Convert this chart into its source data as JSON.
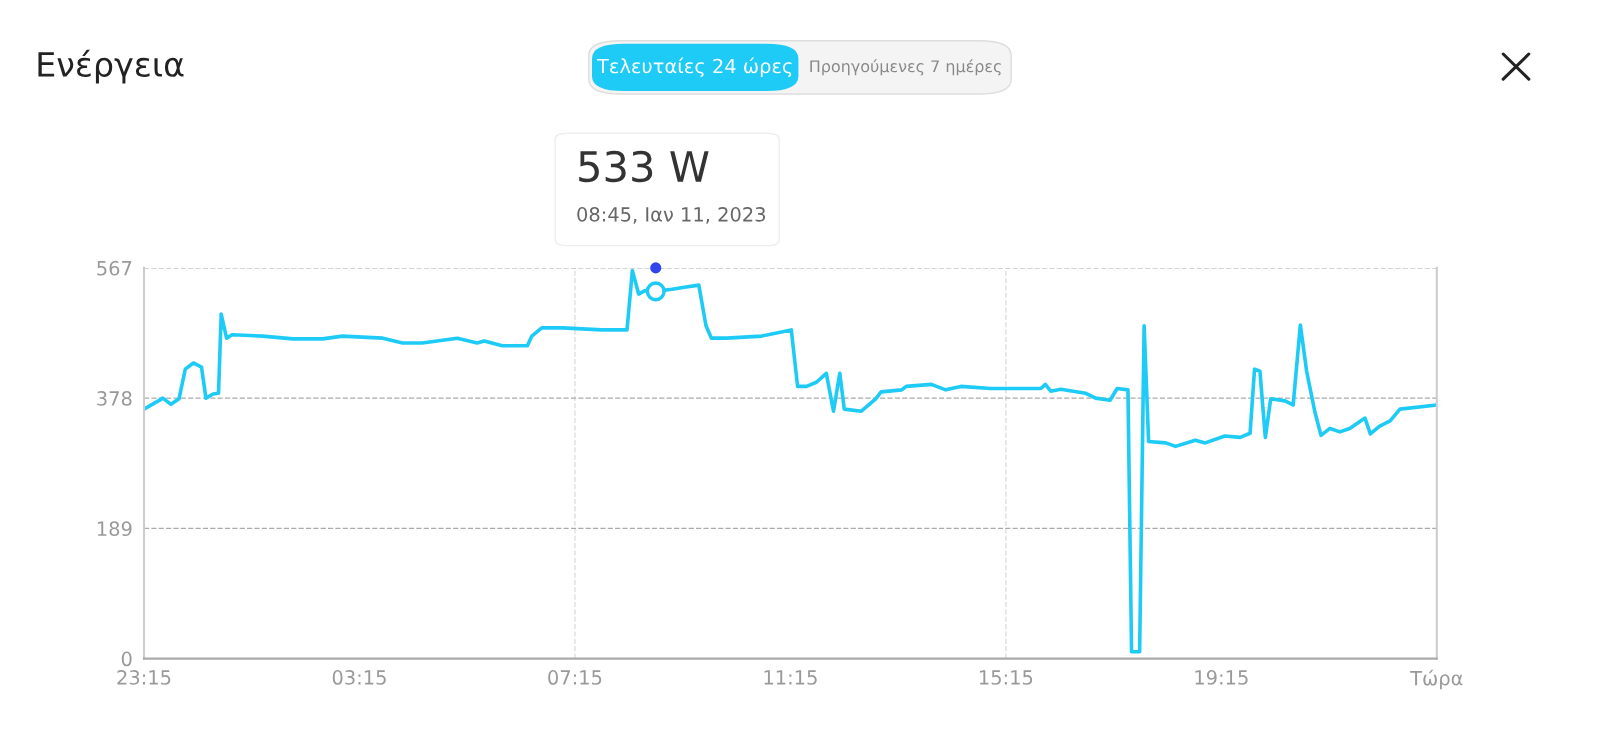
{
  "chart_data": {
    "type": "line",
    "title": "Ενέργεια",
    "x": [
      "2023-01-10T23:15",
      "2023-01-10T23:31",
      "2023-01-10T23:36",
      "2023-01-10T23:45",
      "2023-01-10T23:54",
      "2023-01-11T00:01",
      "2023-01-11T00:10",
      "2023-01-11T00:19",
      "2023-01-11T00:24",
      "2023-01-11T00:32",
      "2023-01-11T00:38",
      "2023-01-11T00:41",
      "2023-01-11T00:47",
      "2023-01-11T00:53",
      "2023-01-11T01:27",
      "2023-01-11T02:01",
      "2023-01-11T02:34",
      "2023-01-11T02:56",
      "2023-01-11T03:41",
      "2023-01-11T04:03",
      "2023-01-11T04:25",
      "2023-01-11T05:04",
      "2023-01-11T05:26",
      "2023-01-11T05:34",
      "2023-01-11T05:54",
      "2023-01-11T06:22",
      "2023-01-11T06:27",
      "2023-01-11T06:38",
      "2023-01-11T07:01",
      "2023-01-11T07:45",
      "2023-01-11T08:13",
      "2023-01-11T08:19",
      "2023-01-11T08:26",
      "2023-01-11T08:33",
      "2023-01-11T08:45",
      "2023-01-11T09:03",
      "2023-01-11T09:17",
      "2023-01-11T09:33",
      "2023-01-11T09:41",
      "2023-01-11T09:47",
      "2023-01-11T10:04",
      "2023-01-11T10:43",
      "2023-01-11T11:16",
      "2023-01-11T11:23",
      "2023-01-11T11:33",
      "2023-01-11T11:44",
      "2023-01-11T11:55",
      "2023-01-11T12:03",
      "2023-01-11T12:10",
      "2023-01-11T12:15",
      "2023-01-11T12:34",
      "2023-01-11T12:50",
      "2023-01-11T12:56",
      "2023-01-11T13:19",
      "2023-01-11T13:24",
      "2023-01-11T13:52",
      "2023-01-11T14:08",
      "2023-01-11T14:25",
      "2023-01-11T14:58",
      "2023-01-11T15:54",
      "2023-01-11T15:59",
      "2023-01-11T16:05",
      "2023-01-11T16:16",
      "2023-01-11T16:44",
      "2023-01-11T16:55",
      "2023-01-11T17:11",
      "2023-01-11T17:19",
      "2023-01-11T17:31",
      "2023-01-11T17:35",
      "2023-01-11T17:44",
      "2023-01-11T17:49",
      "2023-01-11T17:54",
      "2023-01-11T18:13",
      "2023-01-11T18:24",
      "2023-01-11T18:46",
      "2023-01-11T18:57",
      "2023-01-11T19:19",
      "2023-01-11T19:36",
      "2023-01-11T19:47",
      "2023-01-11T19:52",
      "2023-01-11T19:58",
      "2023-01-11T20:04",
      "2023-01-11T20:10",
      "2023-01-11T20:26",
      "2023-01-11T20:35",
      "2023-01-11T20:43",
      "2023-01-11T20:50",
      "2023-01-11T20:59",
      "2023-01-11T21:06",
      "2023-01-11T21:16",
      "2023-01-11T21:27",
      "2023-01-11T21:38",
      "2023-01-11T21:55",
      "2023-01-11T22:01",
      "2023-01-11T22:11",
      "2023-01-11T22:23",
      "2023-01-11T22:34",
      "2023-01-11T23:15"
    ],
    "series": [
      {
        "color": "#1ecbf7",
        "values": [
          362,
          374,
          378,
          369,
          377,
          420,
          429,
          423,
          378,
          384,
          385,
          500,
          465,
          470,
          468,
          464,
          464,
          468,
          465,
          458,
          458,
          465,
          458,
          461,
          454,
          454,
          468,
          480,
          480,
          477,
          477,
          563,
          529,
          534,
          533,
          536,
          539,
          542,
          483,
          465,
          465,
          468,
          477,
          395,
          395,
          401,
          414,
          359,
          414,
          362,
          359,
          377,
          387,
          390,
          395,
          398,
          390,
          395,
          392,
          392,
          398,
          388,
          391,
          385,
          378,
          375,
          392,
          390,
          10,
          10,
          483,
          315,
          313,
          308,
          317,
          313,
          323,
          321,
          327,
          420,
          417,
          321,
          377,
          374,
          368,
          484,
          417,
          359,
          324,
          334,
          329,
          334,
          349,
          326,
          337,
          345,
          362,
          368
        ]
      }
    ],
    "xlim": [
      "2023-01-10T23:15",
      "2023-01-11T23:15"
    ],
    "ylim": [
      0,
      567
    ],
    "xticks": [
      {
        "value": "2023-01-10T23:15",
        "label": "23:15"
      },
      {
        "value": "2023-01-11T03:15",
        "label": "03:15"
      },
      {
        "value": "2023-01-11T07:15",
        "label": "07:15"
      },
      {
        "value": "2023-01-11T11:15",
        "label": "11:15"
      },
      {
        "value": "2023-01-11T15:15",
        "label": "15:15"
      },
      {
        "value": "2023-01-11T19:15",
        "label": "19:15"
      },
      {
        "value": "2023-01-11T23:15",
        "label": "Τώρα"
      }
    ],
    "yticks": [
      0,
      189,
      378,
      567
    ],
    "grid": "y",
    "ref_lines": [
      {
        "axis": "x",
        "value": "2023-01-11T07:15",
        "color": "#dddddd",
        "line_style": "dashed"
      },
      {
        "axis": "x",
        "value": "2023-01-11T15:15",
        "color": "#dddddd",
        "line_style": "dashed"
      }
    ],
    "annotations": [
      {
        "text": "533 W",
        "x": "2023-01-11T08:45",
        "y": 533
      },
      "08:45, Ιαν 11, 2023",
      "Τελευταίες 24 ώρες",
      "Προηγούμενες 7 ημέρες"
    ]
  }
}
